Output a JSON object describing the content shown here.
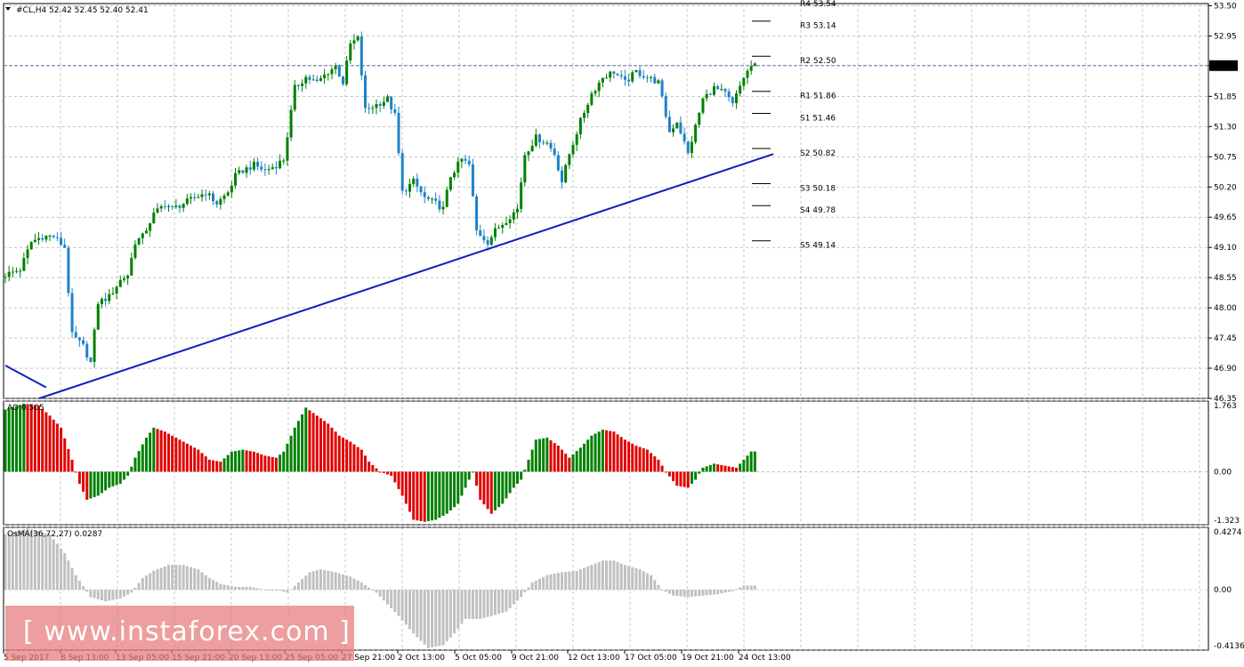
{
  "header": {
    "symbol_line": "#CL,H4  52.42 52.45 52.40 52.41",
    "ao_label": "AO 0.505",
    "osma_label": "OsMA(36,72,27) 0.0287"
  },
  "watermark": {
    "text": "[ www.instaforex.com ]"
  },
  "colors": {
    "bull": "#008000",
    "bear": "#1e82c8",
    "ao_up": "#008000",
    "ao_down": "#e00000",
    "osma": "#c0c0c0",
    "trendline": "#1020c0",
    "grid": "#9aa0a8",
    "bid_line": "#6070a0",
    "price_tag_bg": "#000000",
    "watermark_bg": "#e67878"
  },
  "chart_data": [
    {
      "type": "candlestick",
      "panel": "price",
      "ylim": [
        46.35,
        53.54
      ],
      "y_ticks": [
        "53.50",
        "52.95",
        "52.41",
        "51.85",
        "51.30",
        "50.75",
        "50.20",
        "49.65",
        "49.10",
        "48.55",
        "48.00",
        "47.45",
        "46.90",
        "46.35"
      ],
      "x_ticks": [
        "5 Sep 2017",
        "8 Sep 13:00",
        "13 Sep 05:00",
        "15 Sep 21:00",
        "20 Sep 13:00",
        "25 Sep 05:00",
        "27 Sep 21:00",
        "2 Oct 13:00",
        "5 Oct 05:00",
        "9 Oct 21:00",
        "12 Oct 13:00",
        "17 Oct 05:00",
        "19 Oct 21:00",
        "24 Oct 13:00"
      ],
      "current_price": "52.41",
      "close_path": [
        [
          0,
          48.6
        ],
        [
          4,
          48.7
        ],
        [
          7,
          49.2
        ],
        [
          10,
          49.3
        ],
        [
          13,
          49.3
        ],
        [
          16,
          49.1
        ],
        [
          18,
          47.5
        ],
        [
          21,
          47.3
        ],
        [
          23,
          47.0
        ],
        [
          25,
          48.1
        ],
        [
          28,
          48.2
        ],
        [
          31,
          48.5
        ],
        [
          33,
          48.6
        ],
        [
          35,
          49.2
        ],
        [
          37,
          49.3
        ],
        [
          40,
          49.7
        ],
        [
          43,
          49.9
        ],
        [
          45,
          49.8
        ],
        [
          48,
          49.9
        ],
        [
          51,
          50.0
        ],
        [
          54,
          50.1
        ],
        [
          57,
          49.9
        ],
        [
          60,
          50.1
        ],
        [
          62,
          50.4
        ],
        [
          64,
          50.5
        ],
        [
          67,
          50.6
        ],
        [
          70,
          50.5
        ],
        [
          73,
          50.6
        ],
        [
          75,
          50.7
        ],
        [
          78,
          52.0
        ],
        [
          81,
          52.2
        ],
        [
          84,
          52.1
        ],
        [
          87,
          52.3
        ],
        [
          89,
          52.4
        ],
        [
          91,
          52.1
        ],
        [
          93,
          52.8
        ],
        [
          95,
          52.9
        ],
        [
          97,
          51.6
        ],
        [
          100,
          51.7
        ],
        [
          103,
          51.8
        ],
        [
          105,
          51.5
        ],
        [
          107,
          50.1
        ],
        [
          110,
          50.3
        ],
        [
          113,
          50.0
        ],
        [
          116,
          49.9
        ],
        [
          118,
          49.8
        ],
        [
          120,
          50.4
        ],
        [
          123,
          50.7
        ],
        [
          125,
          50.6
        ],
        [
          127,
          49.4
        ],
        [
          130,
          49.2
        ],
        [
          132,
          49.4
        ],
        [
          135,
          49.6
        ],
        [
          138,
          49.8
        ],
        [
          140,
          50.8
        ],
        [
          143,
          51.1
        ],
        [
          146,
          51.0
        ],
        [
          148,
          50.8
        ],
        [
          150,
          50.3
        ],
        [
          152,
          50.8
        ],
        [
          155,
          51.4
        ],
        [
          158,
          51.9
        ],
        [
          161,
          52.2
        ],
        [
          164,
          52.3
        ],
        [
          167,
          52.1
        ],
        [
          170,
          52.3
        ],
        [
          173,
          52.2
        ],
        [
          176,
          52.1
        ],
        [
          179,
          51.2
        ],
        [
          181,
          51.4
        ],
        [
          184,
          50.8
        ],
        [
          186,
          51.3
        ],
        [
          188,
          51.8
        ],
        [
          191,
          52.0
        ],
        [
          194,
          51.9
        ],
        [
          196,
          51.7
        ],
        [
          199,
          52.2
        ],
        [
          201,
          52.4
        ]
      ],
      "trendline": {
        "from": [
          0,
          46.35
        ],
        "to": [
          207,
          50.8
        ]
      },
      "trendline_short": {
        "from": [
          0,
          46.95
        ],
        "to": [
          11,
          46.55
        ]
      },
      "bid_line": 52.41,
      "pivot_levels": [
        {
          "name": "R4",
          "label": "R4 53.54",
          "value": 53.54
        },
        {
          "name": "R3",
          "label": "R3 53.14",
          "value": 53.14
        },
        {
          "name": "R2",
          "label": "R2 52.50",
          "value": 52.5
        },
        {
          "name": "R1",
          "label": "R1 51.86",
          "value": 51.86
        },
        {
          "name": "S1",
          "label": "S1 51.46",
          "value": 51.46
        },
        {
          "name": "S2",
          "label": "S2 50.82",
          "value": 50.82
        },
        {
          "name": "S3",
          "label": "S3 50.18",
          "value": 50.18
        },
        {
          "name": "S4",
          "label": "S4 49.78",
          "value": 49.78
        },
        {
          "name": "S5",
          "label": "S5 49.14",
          "value": 49.14
        }
      ]
    },
    {
      "type": "bar",
      "panel": "AO",
      "ylim": [
        -1.323,
        1.763
      ],
      "y_ticks": [
        "1.763",
        "0.00",
        "-1.323"
      ],
      "value_path": [
        [
          0,
          1.55
        ],
        [
          5,
          1.7
        ],
        [
          9,
          1.65
        ],
        [
          12,
          1.4
        ],
        [
          15,
          1.1
        ],
        [
          18,
          0.3
        ],
        [
          20,
          -0.3
        ],
        [
          22,
          -0.7
        ],
        [
          25,
          -0.6
        ],
        [
          28,
          -0.4
        ],
        [
          31,
          -0.3
        ],
        [
          33,
          -0.1
        ],
        [
          35,
          0.35
        ],
        [
          38,
          0.85
        ],
        [
          40,
          1.1
        ],
        [
          43,
          1.0
        ],
        [
          46,
          0.85
        ],
        [
          49,
          0.7
        ],
        [
          52,
          0.55
        ],
        [
          55,
          0.3
        ],
        [
          58,
          0.25
        ],
        [
          61,
          0.5
        ],
        [
          64,
          0.55
        ],
        [
          67,
          0.5
        ],
        [
          70,
          0.4
        ],
        [
          73,
          0.35
        ],
        [
          75,
          0.5
        ],
        [
          78,
          1.1
        ],
        [
          81,
          1.6
        ],
        [
          84,
          1.4
        ],
        [
          87,
          1.2
        ],
        [
          90,
          0.9
        ],
        [
          93,
          0.75
        ],
        [
          96,
          0.55
        ],
        [
          98,
          0.25
        ],
        [
          101,
          0.0
        ],
        [
          104,
          -0.1
        ],
        [
          107,
          -0.6
        ],
        [
          110,
          -1.2
        ],
        [
          113,
          -1.25
        ],
        [
          116,
          -1.2
        ],
        [
          119,
          -1.05
        ],
        [
          122,
          -0.8
        ],
        [
          124,
          -0.4
        ],
        [
          126,
          0.0
        ],
        [
          128,
          -0.7
        ],
        [
          131,
          -1.05
        ],
        [
          134,
          -0.8
        ],
        [
          137,
          -0.4
        ],
        [
          139,
          -0.2
        ],
        [
          141,
          0.3
        ],
        [
          143,
          0.8
        ],
        [
          146,
          0.85
        ],
        [
          149,
          0.65
        ],
        [
          152,
          0.35
        ],
        [
          155,
          0.6
        ],
        [
          158,
          0.9
        ],
        [
          161,
          1.05
        ],
        [
          164,
          1.0
        ],
        [
          167,
          0.8
        ],
        [
          170,
          0.65
        ],
        [
          173,
          0.55
        ],
        [
          176,
          0.3
        ],
        [
          178,
          0.0
        ],
        [
          181,
          -0.35
        ],
        [
          184,
          -0.4
        ],
        [
          186,
          -0.2
        ],
        [
          188,
          0.1
        ],
        [
          191,
          0.2
        ],
        [
          194,
          0.15
        ],
        [
          197,
          0.1
        ],
        [
          199,
          0.3
        ],
        [
          201,
          0.505
        ]
      ]
    },
    {
      "type": "histogram",
      "panel": "OsMA",
      "ylim": [
        -0.4136,
        0.4274
      ],
      "y_ticks": [
        "0.4274",
        "0.00",
        "-0.4136"
      ],
      "value_path": [
        [
          0,
          0.38
        ],
        [
          6,
          0.42
        ],
        [
          12,
          0.38
        ],
        [
          16,
          0.25
        ],
        [
          19,
          0.1
        ],
        [
          23,
          -0.05
        ],
        [
          27,
          -0.08
        ],
        [
          31,
          -0.06
        ],
        [
          34,
          -0.02
        ],
        [
          37,
          0.08
        ],
        [
          40,
          0.13
        ],
        [
          44,
          0.17
        ],
        [
          48,
          0.17
        ],
        [
          52,
          0.14
        ],
        [
          55,
          0.08
        ],
        [
          58,
          0.04
        ],
        [
          62,
          0.02
        ],
        [
          66,
          0.02
        ],
        [
          70,
          0.0
        ],
        [
          73,
          0.0
        ],
        [
          76,
          -0.02
        ],
        [
          79,
          0.05
        ],
        [
          82,
          0.12
        ],
        [
          85,
          0.14
        ],
        [
          89,
          0.12
        ],
        [
          93,
          0.09
        ],
        [
          96,
          0.05
        ],
        [
          100,
          -0.02
        ],
        [
          103,
          -0.1
        ],
        [
          106,
          -0.18
        ],
        [
          110,
          -0.3
        ],
        [
          114,
          -0.4
        ],
        [
          118,
          -0.38
        ],
        [
          121,
          -0.3
        ],
        [
          124,
          -0.2
        ],
        [
          128,
          -0.2
        ],
        [
          131,
          -0.18
        ],
        [
          135,
          -0.15
        ],
        [
          139,
          -0.05
        ],
        [
          142,
          0.05
        ],
        [
          146,
          0.1
        ],
        [
          150,
          0.12
        ],
        [
          154,
          0.13
        ],
        [
          158,
          0.17
        ],
        [
          161,
          0.2
        ],
        [
          164,
          0.2
        ],
        [
          167,
          0.17
        ],
        [
          171,
          0.14
        ],
        [
          174,
          0.1
        ],
        [
          177,
          0.0
        ],
        [
          180,
          -0.04
        ],
        [
          184,
          -0.05
        ],
        [
          188,
          -0.04
        ],
        [
          192,
          -0.03
        ],
        [
          196,
          -0.01
        ],
        [
          199,
          0.0287
        ],
        [
          201,
          0.0287
        ]
      ]
    }
  ]
}
